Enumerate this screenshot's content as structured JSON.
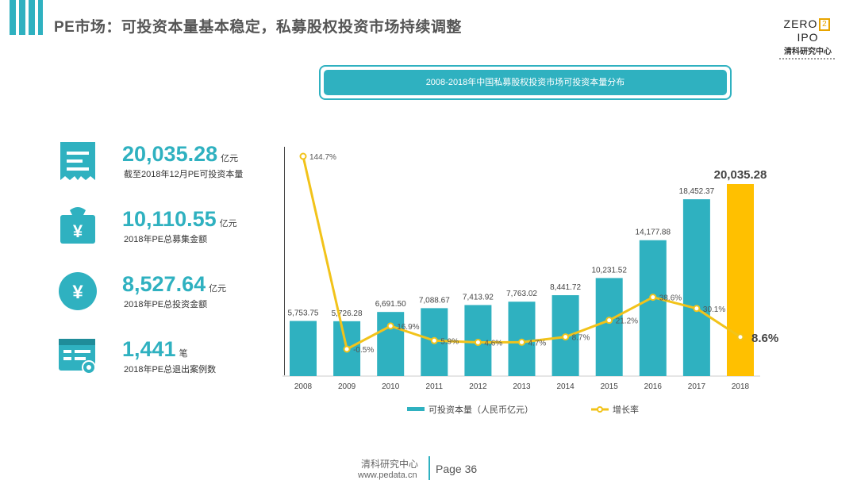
{
  "header": {
    "title": "PE市场：可投资本量基本稳定，私募股权投资市场持续调整"
  },
  "logo": {
    "main_left": "ZERO",
    "main_mark": "2",
    "main_right": "IPO",
    "sub": "清科研究中心"
  },
  "stats": [
    {
      "icon": "receipt-icon",
      "value": "20,035.28",
      "unit": "亿元",
      "label": "截至2018年12月PE可投资本量"
    },
    {
      "icon": "money-bag-icon",
      "value": "10,110.55",
      "unit": "亿元",
      "label": "2018年PE总募集金额"
    },
    {
      "icon": "yuan-coin-icon",
      "value": "8,527.64",
      "unit": "亿元",
      "label": "2018年PE总投资金额"
    },
    {
      "icon": "case-card-icon",
      "value": "1,441",
      "unit": "笔",
      "label": "2018年PE总退出案例数"
    }
  ],
  "colors": {
    "accent": "#2fb1c0",
    "highlight": "#ffc000",
    "line": "#f2c31a"
  },
  "chart_data": {
    "type": "bar",
    "title": "2008-2018年中国私募股权投资市场可投资本量分布",
    "categories": [
      "2008",
      "2009",
      "2010",
      "2011",
      "2012",
      "2013",
      "2014",
      "2015",
      "2016",
      "2017",
      "2018"
    ],
    "series": [
      {
        "name": "可投资本量（人民币亿元）",
        "type": "bar",
        "values": [
          5753.75,
          5726.28,
          6691.5,
          7088.67,
          7413.92,
          7763.02,
          8441.72,
          10231.52,
          14177.88,
          18452.37,
          20035.28
        ],
        "labels": [
          "5,753.75",
          "5,726.28",
          "6,691.50",
          "7,088.67",
          "7,413.92",
          "7,763.02",
          "8,441.72",
          "10,231.52",
          "14,177.88",
          "18,452.37",
          "20,035.28"
        ]
      },
      {
        "name": "增长率",
        "type": "line",
        "values": [
          144.7,
          -0.5,
          16.9,
          5.9,
          4.6,
          4.7,
          8.7,
          21.2,
          38.6,
          30.1,
          8.6
        ],
        "labels": [
          "144.7%",
          "-0.5%",
          "16.9%",
          "5.9%",
          "4.6%",
          "4.7%",
          "8.7%",
          "21.2%",
          "38.6%",
          "30.1%",
          "8.6%"
        ]
      }
    ],
    "highlight_category": "2018",
    "legend_position": "bottom",
    "grid": false
  },
  "footer": {
    "org": "清科研究中心",
    "url": "www.pedata.cn",
    "page": "Page 36"
  }
}
